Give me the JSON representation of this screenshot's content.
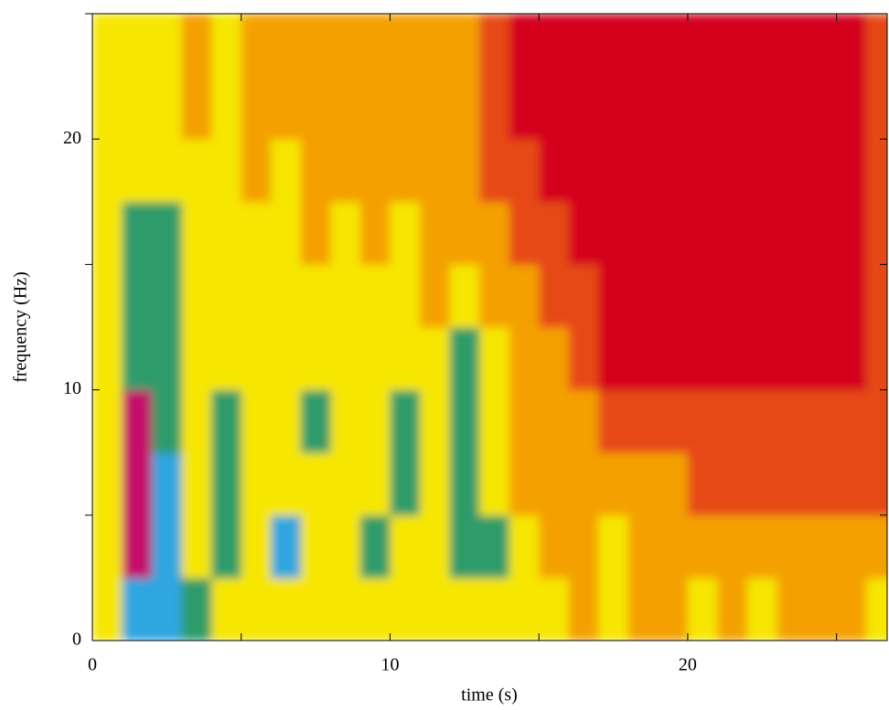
{
  "chart_data": {
    "type": "heatmap",
    "x_label": "time (s)",
    "y_label": "frequency (Hz)",
    "xlim": [
      0,
      26.7
    ],
    "ylim": [
      0,
      25
    ],
    "xticks": [
      0,
      10,
      20
    ],
    "yticks": [
      0,
      10,
      20
    ],
    "xminorticks": [
      5,
      15,
      25
    ],
    "yminorticks": [
      5,
      15,
      25
    ],
    "xbins": [
      0,
      1,
      2,
      3,
      4,
      5,
      6,
      7,
      8,
      9,
      10,
      11,
      12,
      13,
      14,
      15,
      16,
      17,
      18,
      19,
      20,
      21,
      22,
      23,
      24,
      25,
      26,
      27
    ],
    "ybins": [
      0,
      2.5,
      5,
      7.5,
      10,
      12.5,
      15,
      17.5,
      20,
      22.5,
      25
    ],
    "colors": [
      "#d4001f",
      "#e64a17",
      "#f4a000",
      "#f6e600",
      "#2e9b6a",
      "#2ea6df",
      "#c4106c"
    ],
    "z": [
      [
        3,
        5,
        5,
        4,
        3,
        3,
        3,
        3,
        3,
        3,
        3,
        3,
        3,
        3,
        3,
        3,
        2,
        3,
        2,
        2,
        3,
        2,
        3,
        2,
        2,
        2,
        3
      ],
      [
        3,
        6,
        5,
        3,
        4,
        3,
        5,
        3,
        3,
        4,
        3,
        3,
        4,
        4,
        3,
        2,
        2,
        3,
        2,
        2,
        2,
        2,
        2,
        2,
        2,
        2,
        2
      ],
      [
        3,
        6,
        5,
        3,
        4,
        3,
        3,
        3,
        3,
        3,
        4,
        3,
        4,
        3,
        2,
        2,
        2,
        2,
        2,
        2,
        1,
        1,
        1,
        1,
        1,
        1,
        1
      ],
      [
        3,
        6,
        4,
        3,
        4,
        3,
        3,
        4,
        3,
        3,
        4,
        3,
        4,
        3,
        2,
        2,
        2,
        1,
        1,
        1,
        1,
        1,
        1,
        1,
        1,
        1,
        1
      ],
      [
        3,
        4,
        4,
        3,
        3,
        3,
        3,
        3,
        3,
        3,
        3,
        3,
        4,
        3,
        2,
        2,
        1,
        0,
        0,
        0,
        0,
        0,
        0,
        0,
        0,
        0,
        1
      ],
      [
        3,
        4,
        4,
        3,
        3,
        3,
        3,
        3,
        3,
        3,
        3,
        2,
        3,
        2,
        2,
        1,
        1,
        0,
        0,
        0,
        0,
        0,
        0,
        0,
        0,
        0,
        1
      ],
      [
        3,
        4,
        4,
        3,
        3,
        3,
        3,
        2,
        3,
        2,
        3,
        2,
        2,
        2,
        1,
        1,
        0,
        0,
        0,
        0,
        0,
        0,
        0,
        0,
        0,
        0,
        1
      ],
      [
        3,
        3,
        3,
        3,
        3,
        2,
        3,
        2,
        2,
        2,
        2,
        2,
        2,
        1,
        1,
        0,
        0,
        0,
        0,
        0,
        0,
        0,
        0,
        0,
        0,
        0,
        1
      ],
      [
        3,
        3,
        3,
        2,
        3,
        2,
        2,
        2,
        2,
        2,
        2,
        2,
        2,
        1,
        0,
        0,
        0,
        0,
        0,
        0,
        0,
        0,
        0,
        0,
        0,
        0,
        1
      ],
      [
        3,
        3,
        3,
        2,
        3,
        2,
        2,
        2,
        2,
        2,
        2,
        2,
        2,
        1,
        0,
        0,
        0,
        0,
        0,
        0,
        0,
        0,
        0,
        0,
        0,
        0,
        1
      ]
    ]
  }
}
